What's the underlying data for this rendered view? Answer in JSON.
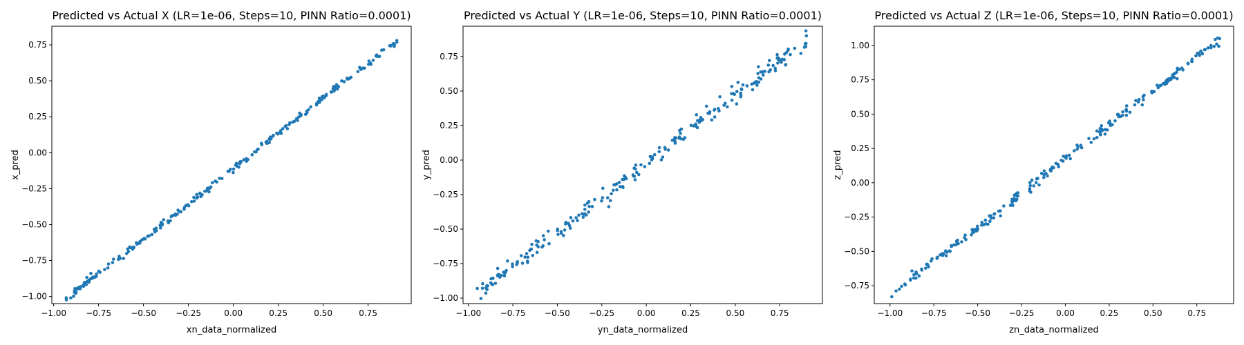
{
  "figure": {
    "background": "#ffffff"
  },
  "chart_data": [
    {
      "type": "scatter",
      "title": "Predicted vs Actual X (LR=1e-06, Steps=10, PINN Ratio=0.0001)",
      "xlabel": "xn_data_normalized",
      "ylabel": "x_pred",
      "xlim": [
        -1.01,
        0.99
      ],
      "ylim": [
        -1.05,
        0.88
      ],
      "xticks": [
        -1.0,
        -0.75,
        -0.5,
        -0.25,
        0.0,
        0.25,
        0.5,
        0.75
      ],
      "xtick_labels": [
        "−1.00",
        "−0.75",
        "−0.50",
        "−0.25",
        "0.00",
        "0.25",
        "0.50",
        "0.75"
      ],
      "yticks": [
        -1.0,
        -0.75,
        -0.5,
        -0.25,
        0.0,
        0.25,
        0.5,
        0.75
      ],
      "ytick_labels": [
        "−1.00",
        "−0.75",
        "−0.50",
        "−0.25",
        "0.00",
        "0.25",
        "0.50",
        "0.75"
      ],
      "grid": false,
      "color": "#1f77b4",
      "trend": {
        "slope": 0.975,
        "intercept": -0.11,
        "noise": 0.012,
        "n": 240,
        "seed": 11
      },
      "endpoints": [
        [
          -0.93,
          -1.01
        ],
        [
          0.91,
          0.78
        ]
      ]
    },
    {
      "type": "scatter",
      "title": "Predicted vs Actual Y (LR=1e-06, Steps=10, PINN Ratio=0.0001)",
      "xlabel": "yn_data_normalized",
      "ylabel": "y_pred",
      "xlim": [
        -1.03,
        0.99
      ],
      "ylim": [
        -1.04,
        0.97
      ],
      "xticks": [
        -1.0,
        -0.75,
        -0.5,
        -0.25,
        0.0,
        0.25,
        0.5,
        0.75
      ],
      "xtick_labels": [
        "−1.00",
        "−0.75",
        "−0.50",
        "−0.25",
        "0.00",
        "0.25",
        "0.50",
        "0.75"
      ],
      "yticks": [
        -1.0,
        -0.75,
        -0.5,
        -0.25,
        0.0,
        0.25,
        0.5,
        0.75
      ],
      "ytick_labels": [
        "−1.00",
        "−0.75",
        "−0.50",
        "−0.25",
        "0.00",
        "0.25",
        "0.50",
        "0.75"
      ],
      "grid": false,
      "color": "#1f77b4",
      "trend": {
        "slope": 0.99,
        "intercept": -0.02,
        "noise": 0.03,
        "n": 240,
        "seed": 23
      },
      "endpoints": [
        [
          -0.95,
          -0.93
        ],
        [
          0.9,
          0.9
        ]
      ]
    },
    {
      "type": "scatter",
      "title": "Predicted vs Actual Z (LR=1e-06, Steps=10, PINN Ratio=0.0001)",
      "xlabel": "zn_data_normalized",
      "ylabel": "z_pred",
      "xlim": [
        -1.09,
        0.96
      ],
      "ylim": [
        -0.88,
        1.14
      ],
      "xticks": [
        -1.0,
        -0.75,
        -0.5,
        -0.25,
        0.0,
        0.25,
        0.5,
        0.75
      ],
      "xtick_labels": [
        "−1.00",
        "−0.75",
        "−0.50",
        "−0.25",
        "0.00",
        "0.25",
        "0.50",
        "0.75"
      ],
      "yticks": [
        -0.75,
        -0.5,
        -0.25,
        0.0,
        0.25,
        0.5,
        0.75,
        1.0
      ],
      "ytick_labels": [
        "−0.75",
        "−0.50",
        "−0.25",
        "0.00",
        "0.25",
        "0.50",
        "0.75",
        "1.00"
      ],
      "grid": false,
      "color": "#1f77b4",
      "trend": {
        "slope": 0.99,
        "intercept": 0.17,
        "noise": 0.018,
        "n": 240,
        "seed": 37
      },
      "endpoints": [
        [
          -0.99,
          -0.83
        ],
        [
          0.88,
          1.05
        ]
      ]
    }
  ]
}
